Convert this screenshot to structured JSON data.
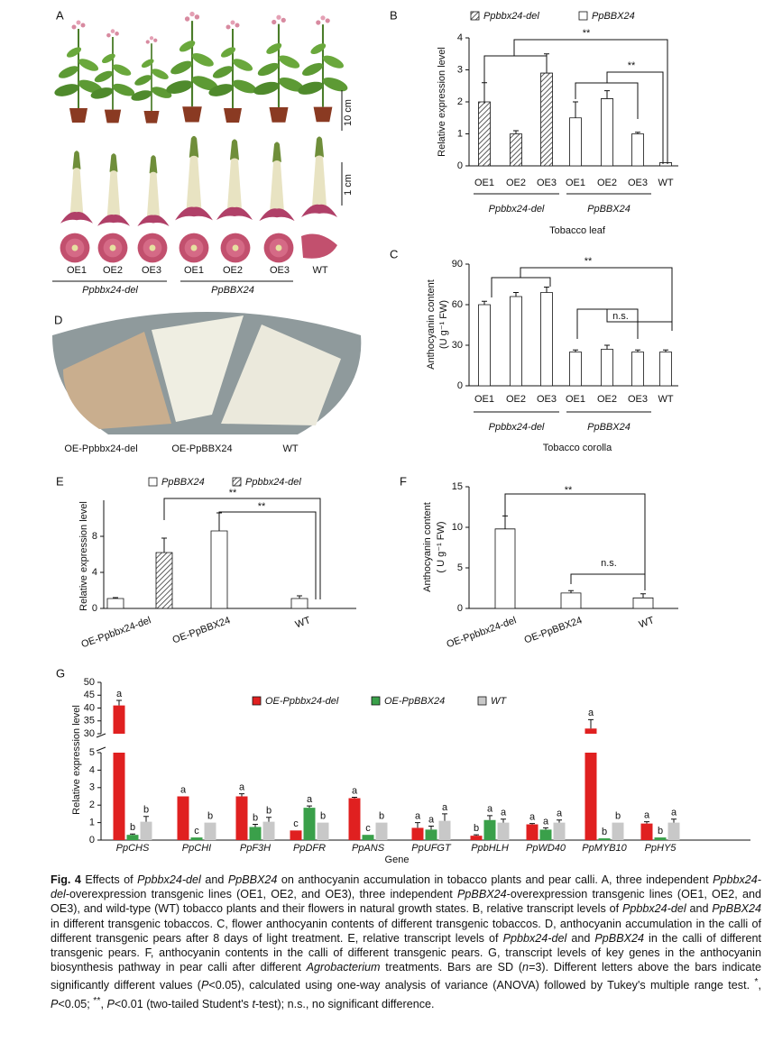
{
  "panels": {
    "A": {
      "label": "A",
      "scale_bars": [
        "10 cm",
        "1 cm"
      ],
      "lines": [
        "OE1",
        "OE2",
        "OE3",
        "OE1",
        "OE2",
        "OE3",
        "WT"
      ],
      "groups": [
        "Ppbbx24-del",
        "PpBBX24"
      ]
    },
    "D": {
      "label": "D",
      "samples": [
        "OE-Ppbbx24-del",
        "OE-PpBBX24",
        "WT"
      ]
    }
  },
  "chart_data": [
    {
      "type": "bar",
      "panel": "B",
      "ylabel": [
        "Relative expression level"
      ],
      "xlabel": "Tobacco leaf",
      "categories": [
        "OE1",
        "OE2",
        "OE3",
        "OE1",
        "OE2",
        "OE3",
        "WT"
      ],
      "groups": [
        "Ppbbx24-del",
        "PpBBX24"
      ],
      "series": [
        {
          "name": "Ppbbx24-del",
          "color": "#ffffff",
          "pattern": "hatch",
          "values": [
            2.0,
            1.0,
            2.9,
            null,
            null,
            null,
            null
          ],
          "errors": [
            0.6,
            0.1,
            0.6,
            null,
            null,
            null,
            null
          ]
        },
        {
          "name": "PpBBX24",
          "color": "#ffffff",
          "values": [
            null,
            null,
            null,
            1.5,
            2.1,
            1.0,
            0.1
          ],
          "errors": [
            null,
            null,
            null,
            0.5,
            0.25,
            0.05,
            0
          ]
        }
      ],
      "ylim": [
        0,
        4
      ],
      "yticks": [
        0,
        1,
        2,
        3,
        4
      ],
      "annotations": [
        "**",
        "**"
      ],
      "legend": "top"
    },
    {
      "type": "bar",
      "panel": "C",
      "ylabel": [
        "Anthocyanin content",
        "(U g⁻¹ FW)"
      ],
      "xlabel": "Tobacco corolla",
      "categories": [
        "OE1",
        "OE2",
        "OE3",
        "OE1",
        "OE2",
        "OE3",
        "WT"
      ],
      "groups": [
        "Ppbbx24-del",
        "PpBBX24"
      ],
      "series": [
        {
          "color": "#ffffff",
          "values": [
            60,
            66,
            69,
            25,
            27,
            25,
            25
          ],
          "errors": [
            2.5,
            3,
            4,
            1.5,
            3,
            1.5,
            1.5
          ]
        }
      ],
      "ylim": [
        0,
        90
      ],
      "yticks": [
        0,
        30,
        60,
        90
      ],
      "annotations": [
        "**",
        "n.s."
      ]
    },
    {
      "type": "bar",
      "panel": "E",
      "ylabel": [
        "Relative expression level"
      ],
      "categories": [
        "OE-Ppbbx24-del",
        "OE-PpBBX24",
        "WT"
      ],
      "series": [
        {
          "name": "PpBBX24",
          "color": "#ffffff",
          "values": [
            1.1,
            8.6,
            1.1
          ],
          "errors": [
            0.1,
            2.0,
            0.3
          ]
        },
        {
          "name": "Ppbbx24-del",
          "color": "#ffffff",
          "pattern": "hatch",
          "values": [
            6.2,
            null,
            null
          ],
          "errors": [
            1.6,
            null,
            null
          ]
        }
      ],
      "ylim": [
        0,
        12
      ],
      "yticks": [
        0,
        4,
        8
      ],
      "annotations": [
        "**",
        "**"
      ],
      "legend": "top"
    },
    {
      "type": "bar",
      "panel": "F",
      "ylabel": [
        "Anthocyanin content",
        "( U g⁻¹ FW)"
      ],
      "categories": [
        "OE-Ppbbx24-del",
        "OE-PpBBX24",
        "WT"
      ],
      "series": [
        {
          "color": "#ffffff",
          "values": [
            9.8,
            1.9,
            1.3
          ],
          "errors": [
            1.6,
            0.3,
            0.5
          ]
        }
      ],
      "ylim": [
        0,
        15
      ],
      "yticks": [
        0,
        5,
        10,
        15
      ],
      "annotations": [
        "**",
        "n.s."
      ]
    },
    {
      "type": "bar",
      "panel": "G",
      "ylabel": [
        "Relative expression level"
      ],
      "xlabel": "Gene",
      "categories": [
        "PpCHS",
        "PpCHI",
        "PpF3H",
        "PpDFR",
        "PpANS",
        "PpUFGT",
        "PpbHLH",
        "PpWD40",
        "PpMYB10",
        "PpHY5"
      ],
      "series": [
        {
          "name": "OE-Ppbbx24-del",
          "color": "#e02020",
          "values": [
            41,
            2.5,
            2.5,
            0.55,
            2.4,
            0.7,
            0.25,
            0.9,
            32,
            0.95
          ],
          "errors": [
            2,
            0,
            0.15,
            0,
            0.05,
            0.3,
            0.05,
            0.05,
            3.5,
            0.1
          ],
          "letters": [
            "a",
            "a",
            "a",
            "c",
            "a",
            "a",
            "b",
            "a",
            "a",
            "a"
          ]
        },
        {
          "name": "OE-PpBBX24",
          "color": "#3aa04a",
          "values": [
            0.3,
            0.15,
            0.75,
            1.85,
            0.3,
            0.6,
            1.15,
            0.6,
            0.1,
            0.15
          ],
          "errors": [
            0.05,
            0,
            0.15,
            0.1,
            0,
            0.2,
            0.25,
            0.1,
            0,
            0
          ],
          "letters": [
            "b",
            "c",
            "b",
            "a",
            "c",
            "a",
            "a",
            "a",
            "b",
            "b"
          ]
        },
        {
          "name": "WT",
          "color": "#c8c8c8",
          "values": [
            1.05,
            1.0,
            1.05,
            1.0,
            1.0,
            1.1,
            1.0,
            1.0,
            1.0,
            1.0
          ],
          "errors": [
            0.3,
            0,
            0.25,
            0,
            0,
            0.4,
            0.2,
            0.15,
            0,
            0.2
          ],
          "letters": [
            "b",
            "b",
            "b",
            "b",
            "b",
            "a",
            "a",
            "a",
            "b",
            "a"
          ]
        }
      ],
      "ylim": [
        0,
        50
      ],
      "ybreak": [
        5,
        30
      ],
      "yticks": [
        0,
        1,
        2,
        3,
        4,
        5,
        30,
        35,
        40,
        45,
        50
      ],
      "legend": "top",
      "italic_categories": true
    }
  ],
  "caption": [
    {
      "text": "Fig. 4",
      "style": "bold"
    },
    " Effects of ",
    {
      "text": "Ppbbx24-del",
      "style": "italic"
    },
    " and ",
    {
      "text": "PpBBX24",
      "style": "italic"
    },
    " on anthocyanin accumulation in tobacco plants and pear calli.  A, three independent ",
    {
      "text": "Ppbbx24-del",
      "style": "italic"
    },
    "-overexpression transgenic lines (OE1, OE2, and OE3), three independent ",
    {
      "text": "PpBBX24",
      "style": "italic"
    },
    "-overexpression transgenic lines (OE1, OE2, and OE3), and wild-type (WT) tobacco plants and their flowers in natural growth states.  B, relative transcript levels of ",
    {
      "text": "Ppbbx24-del",
      "style": "italic"
    },
    " and ",
    {
      "text": "PpBBX24",
      "style": "italic"
    },
    " in different transgenic tobaccos.  C, flower anthocyanin contents of different transgenic tobaccos.  D, anthocyanin accumulation in the calli of different transgenic pears after 8 days of light treatment.  E, relative transcript levels of ",
    {
      "text": "Ppbbx24-del",
      "style": "italic"
    },
    " and ",
    {
      "text": "PpBBX24",
      "style": "italic"
    },
    " in the calli of different transgenic pears.  F, anthocyanin contents in the calli of different transgenic pears.  G, transcript levels of key genes in the anthocyanin biosynthesis pathway in pear calli after different ",
    {
      "text": "Agrobacterium",
      "style": "italic"
    },
    " treatments.  Bars are SD (",
    {
      "text": "n",
      "style": "italic"
    },
    "=3).  Different letters above the bars indicate significantly different values (",
    {
      "text": "P",
      "style": "italic"
    },
    "<0.05), calculated using one-way analysis of variance (ANOVA) followed by Tukey's multiple range test.  ",
    {
      "text": "*",
      "style": "sup"
    },
    ", ",
    {
      "text": "P",
      "style": "italic"
    },
    "<0.05; ",
    {
      "text": "**",
      "style": "sup"
    },
    ", ",
    {
      "text": "P",
      "style": "italic"
    },
    "<0.01 (two-tailed Student's ",
    {
      "text": "t",
      "style": "italic"
    },
    "-test); n.s., no significant difference."
  ]
}
